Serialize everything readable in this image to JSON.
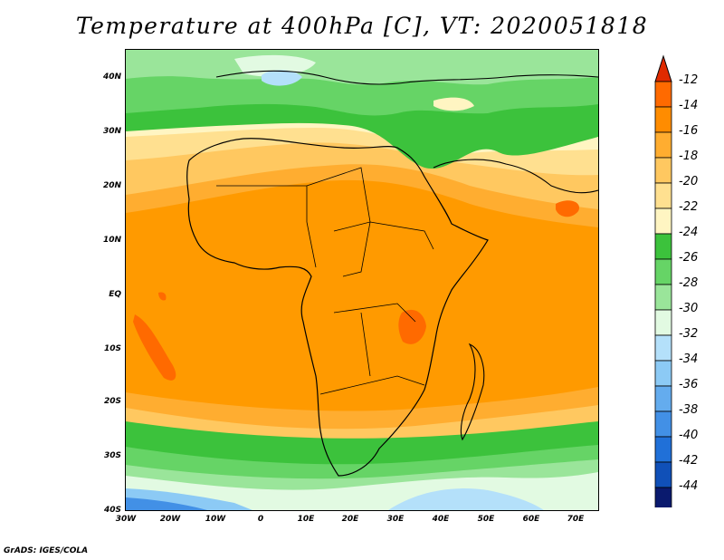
{
  "title": "Temperature at 400hPa [C], VT: 2020051818",
  "credit": "GrADS: IGES/COLA",
  "map": {
    "lon_labels": [
      "30W",
      "20W",
      "10W",
      "0",
      "10E",
      "20E",
      "30E",
      "40E",
      "50E",
      "60E",
      "70E"
    ],
    "lat_labels": [
      "40N",
      "30N",
      "20N",
      "10N",
      "EQ",
      "10S",
      "20S",
      "30S",
      "40S"
    ],
    "lon_range": [
      -30,
      75
    ],
    "lat_range": [
      -40,
      45
    ]
  },
  "colorbar": {
    "labels": [
      "-12",
      "-14",
      "-16",
      "-18",
      "-20",
      "-22",
      "-24",
      "-26",
      "-28",
      "-30",
      "-32",
      "-34",
      "-36",
      "-38",
      "-40",
      "-42",
      "-44"
    ],
    "colors": [
      "#ff6a00",
      "#ff8c00",
      "#ffad30",
      "#ffc860",
      "#ffe090",
      "#fff5c2",
      "#3cc23c",
      "#66d466",
      "#9ae59a",
      "#e2fae2",
      "#b4e0fa",
      "#8ccaf5",
      "#64acee",
      "#4290e6",
      "#2070d8",
      "#1050b8",
      "#0a1a6e"
    ],
    "top_arrow_color": "#e02a00",
    "bottom_arrow_color": "#e8e8ff"
  }
}
